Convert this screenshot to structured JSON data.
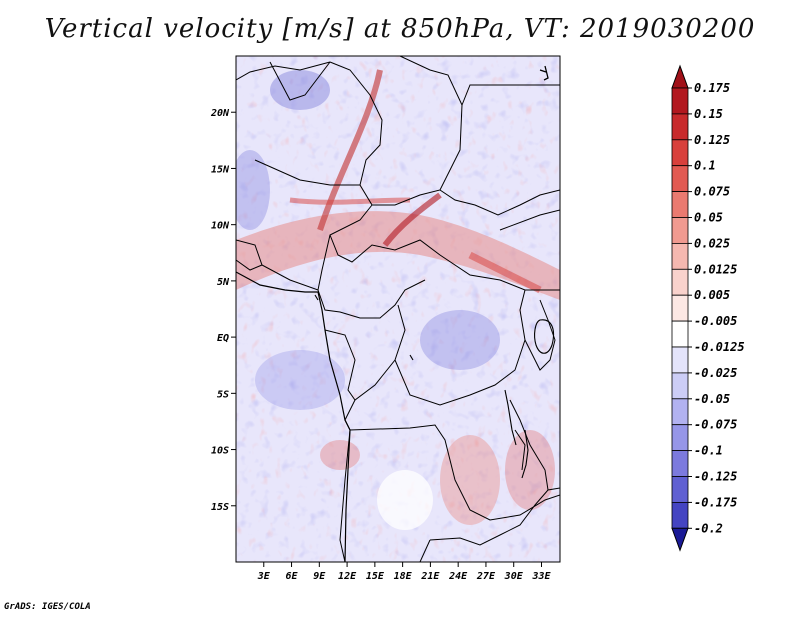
{
  "title": "Vertical velocity [m/s] at 850hPa, VT: 2019030200",
  "footer": "GrADS: IGES/COLA",
  "map": {
    "lon_range": [
      0,
      35
    ],
    "lat_range": [
      -20,
      25
    ],
    "lat_ticks": [
      {
        "value": 20,
        "label": "20N"
      },
      {
        "value": 15,
        "label": "15N"
      },
      {
        "value": 10,
        "label": "10N"
      },
      {
        "value": 5,
        "label": "5N"
      },
      {
        "value": 0,
        "label": "EQ"
      },
      {
        "value": -5,
        "label": "5S"
      },
      {
        "value": -10,
        "label": "10S"
      },
      {
        "value": -15,
        "label": "15S"
      }
    ],
    "lon_ticks": [
      {
        "value": 3,
        "label": "3E"
      },
      {
        "value": 6,
        "label": "6E"
      },
      {
        "value": 9,
        "label": "9E"
      },
      {
        "value": 12,
        "label": "12E"
      },
      {
        "value": 15,
        "label": "15E"
      },
      {
        "value": 18,
        "label": "18E"
      },
      {
        "value": 21,
        "label": "21E"
      },
      {
        "value": 24,
        "label": "24E"
      },
      {
        "value": 27,
        "label": "27E"
      },
      {
        "value": 30,
        "label": "30E"
      },
      {
        "value": 33,
        "label": "33E"
      }
    ]
  },
  "colorbar": {
    "levels": [
      {
        "label": "0.175",
        "color": "#b2181f"
      },
      {
        "label": "0.15",
        "color": "#c82a2c"
      },
      {
        "label": "0.125",
        "color": "#d8403c"
      },
      {
        "label": "0.1",
        "color": "#e25a52"
      },
      {
        "label": "0.075",
        "color": "#ea7a70"
      },
      {
        "label": "0.05",
        "color": "#f09a90"
      },
      {
        "label": "0.025",
        "color": "#f5b8b0"
      },
      {
        "label": "0.0125",
        "color": "#f9d2cc"
      },
      {
        "label": "0.005",
        "color": "#fce8e4"
      },
      {
        "label": "-0.005",
        "color": "#ffffff"
      },
      {
        "label": "-0.0125",
        "color": "#e4e4fb"
      },
      {
        "label": "-0.025",
        "color": "#cccdf6"
      },
      {
        "label": "-0.05",
        "color": "#b2b2f0"
      },
      {
        "label": "-0.075",
        "color": "#9696e8"
      },
      {
        "label": "-0.1",
        "color": "#7c7ade"
      },
      {
        "label": "-0.125",
        "color": "#6060d2"
      },
      {
        "label": "-0.175",
        "color": "#4444c2"
      },
      {
        "label": "-0.2",
        "color": "#2a2aae"
      }
    ],
    "top_color": "#a01018",
    "bottom_color": "#1a1a96"
  }
}
